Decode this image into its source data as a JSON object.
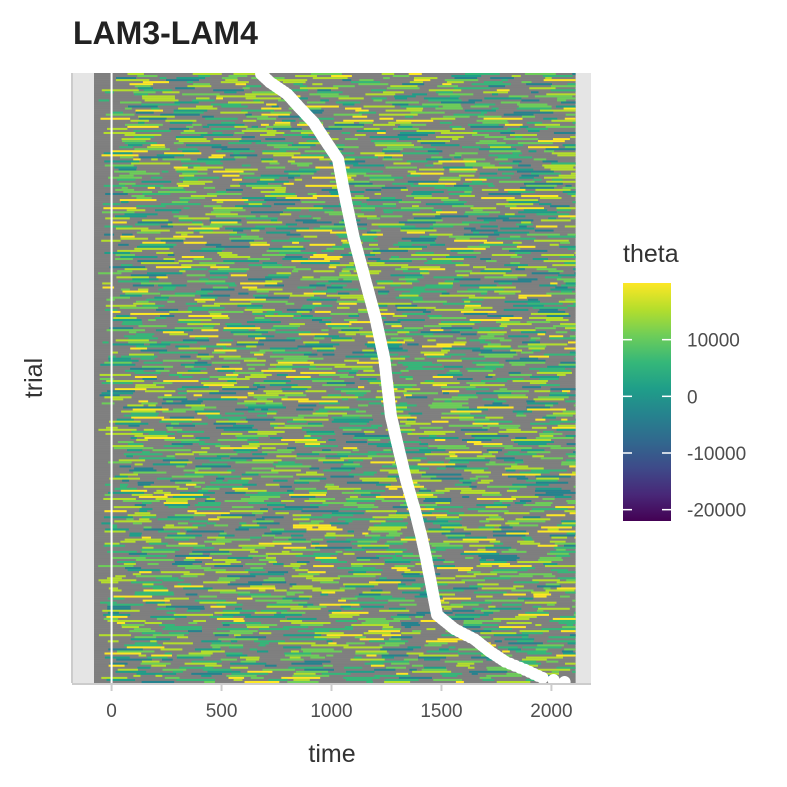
{
  "chart_data": {
    "type": "heatmap",
    "title": "LAM3-LAM4",
    "xlabel": "time",
    "ylabel": "trial",
    "xlim": [
      -180,
      2180
    ],
    "x_ticks": [
      0,
      500,
      1000,
      1500,
      2000
    ],
    "x_tick_labels": [
      "0",
      "500",
      "1000",
      "1500",
      "2000"
    ],
    "heatmap_x_range": [
      -80,
      2110
    ],
    "n_trials": 300,
    "vertical_reference_line": 0,
    "marker_series": {
      "name": "event time per trial",
      "color": "#ffffff",
      "points": [
        {
          "trial": 300,
          "time": 680
        },
        {
          "trial": 296,
          "time": 720
        },
        {
          "trial": 290,
          "time": 800
        },
        {
          "trial": 284,
          "time": 850
        },
        {
          "trial": 276,
          "time": 920
        },
        {
          "trial": 266,
          "time": 980
        },
        {
          "trial": 258,
          "time": 1030
        },
        {
          "trial": 246,
          "time": 1050
        },
        {
          "trial": 238,
          "time": 1065
        },
        {
          "trial": 220,
          "time": 1100
        },
        {
          "trial": 200,
          "time": 1150
        },
        {
          "trial": 180,
          "time": 1200
        },
        {
          "trial": 160,
          "time": 1240
        },
        {
          "trial": 146,
          "time": 1255
        },
        {
          "trial": 132,
          "time": 1270
        },
        {
          "trial": 118,
          "time": 1300
        },
        {
          "trial": 100,
          "time": 1340
        },
        {
          "trial": 85,
          "time": 1380
        },
        {
          "trial": 72,
          "time": 1410
        },
        {
          "trial": 62,
          "time": 1430
        },
        {
          "trial": 34,
          "time": 1480
        },
        {
          "trial": 27,
          "time": 1560
        },
        {
          "trial": 22,
          "time": 1650
        },
        {
          "trial": 16,
          "time": 1720
        },
        {
          "trial": 11,
          "time": 1790
        },
        {
          "trial": 7,
          "time": 1880
        },
        {
          "trial": 3,
          "time": 1960
        },
        {
          "trial": 1,
          "time": 2060
        }
      ]
    },
    "legend": {
      "title": "theta",
      "placement": "right",
      "colorscale": "viridis",
      "range": [
        -22000,
        20000
      ],
      "ticks": [
        10000,
        0,
        -10000,
        -20000
      ],
      "tick_labels": [
        "10000",
        "0",
        "-10000",
        "-20000"
      ]
    },
    "colors": {
      "panel_background": "#e5e5e5",
      "na_fill": "#7f7f7f",
      "reference_line": "#ffffff",
      "viridis": [
        "#440154",
        "#482878",
        "#3e4a89",
        "#31688e",
        "#26828e",
        "#1f9e89",
        "#35b779",
        "#6dcd59",
        "#b4de2c",
        "#fde725"
      ]
    }
  }
}
